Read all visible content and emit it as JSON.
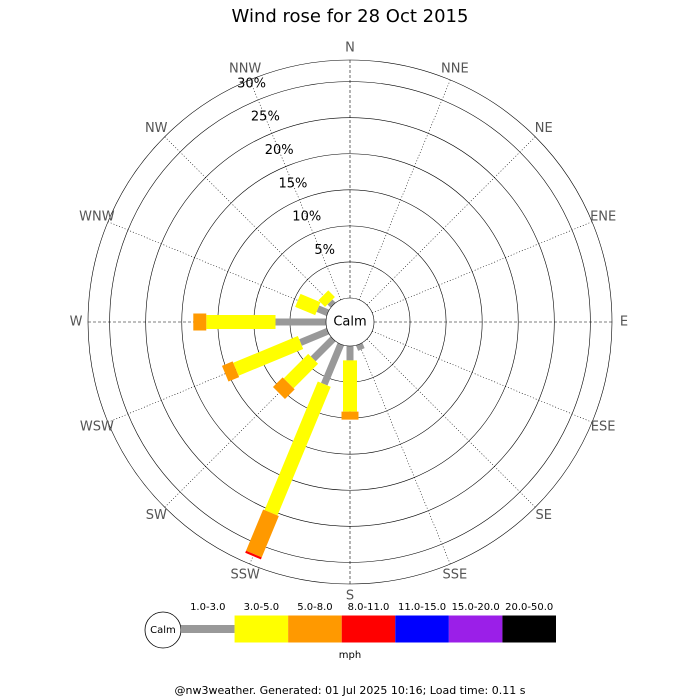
{
  "chart_data": {
    "type": "windrose",
    "title": "Wind rose for 28 Oct 2015",
    "directions": [
      "N",
      "NNE",
      "NE",
      "ENE",
      "E",
      "ESE",
      "SE",
      "SSE",
      "S",
      "SSW",
      "SW",
      "WSW",
      "W",
      "WNW",
      "NW",
      "NNW"
    ],
    "center_label": "Calm",
    "rlim": [
      0,
      33
    ],
    "rticks": [
      {
        "value": 5,
        "label": "5%"
      },
      {
        "value": 10,
        "label": "10%"
      },
      {
        "value": 15,
        "label": "15%"
      },
      {
        "value": 20,
        "label": "20%"
      },
      {
        "value": 25,
        "label": "25%"
      },
      {
        "value": 30,
        "label": "30%"
      }
    ],
    "series": [
      {
        "name": "1.0-3.0",
        "color": "#999999",
        "values": [
          0,
          0,
          0,
          0,
          0,
          0,
          0,
          0.8,
          2.0,
          6.0,
          3.9,
          4.1,
          7.0,
          1.5,
          0.6,
          0
        ]
      },
      {
        "name": "3.0-5.0",
        "color": "#ffff00",
        "values": [
          0,
          0,
          0,
          0,
          0,
          0,
          0,
          0,
          7.1,
          19.3,
          4.8,
          9.7,
          9.6,
          3.0,
          1.3,
          0
        ]
      },
      {
        "name": "5.0-8.0",
        "color": "#ff9900",
        "values": [
          0,
          0,
          0,
          0,
          0,
          0,
          0,
          0,
          1.1,
          6.2,
          1.9,
          1.6,
          1.8,
          0,
          0,
          0
        ]
      },
      {
        "name": "8.0-11.0",
        "color": "#ff0000",
        "values": [
          0,
          0,
          0,
          0,
          0,
          0,
          0,
          0,
          0,
          0.3,
          0,
          0,
          0,
          0,
          0,
          0
        ]
      },
      {
        "name": "11.0-15.0",
        "color": "#0000ff",
        "values": [
          0,
          0,
          0,
          0,
          0,
          0,
          0,
          0,
          0,
          0,
          0,
          0,
          0,
          0,
          0,
          0
        ]
      },
      {
        "name": "15.0-20.0",
        "color": "#9b1fe8",
        "values": [
          0,
          0,
          0,
          0,
          0,
          0,
          0,
          0,
          0,
          0,
          0,
          0,
          0,
          0,
          0,
          0
        ]
      },
      {
        "name": "20.0-50.0",
        "color": "#000000",
        "values": [
          0,
          0,
          0,
          0,
          0,
          0,
          0,
          0,
          0,
          0,
          0,
          0,
          0,
          0,
          0,
          0
        ]
      }
    ],
    "legend_unit": "mph",
    "footer": "@nw3weather. Generated: 01 Jul 2025 10:16; Load time: 0.11 s"
  }
}
